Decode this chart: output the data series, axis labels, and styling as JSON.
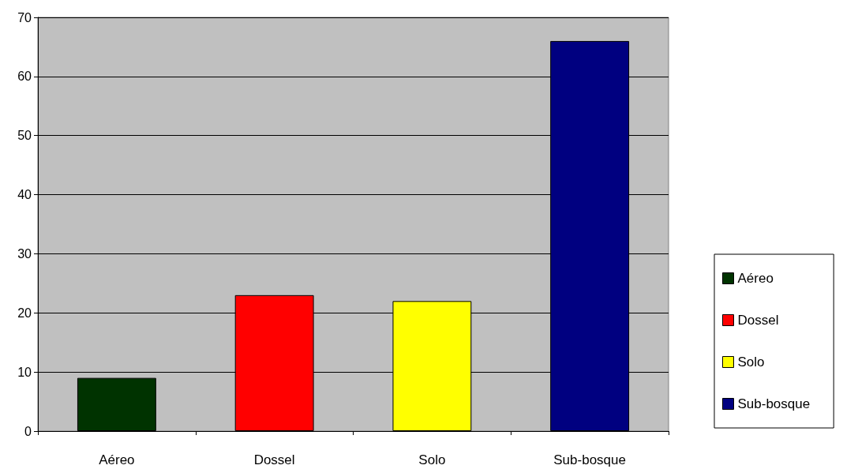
{
  "chart_data": {
    "type": "bar",
    "categories": [
      "Aéreo",
      "Dossel",
      "Solo",
      "Sub-bosque"
    ],
    "series": [
      {
        "name": "Aéreo",
        "color": "#003300",
        "values": [
          9,
          null,
          null,
          null
        ]
      },
      {
        "name": "Dossel",
        "color": "#ff0000",
        "values": [
          null,
          23,
          null,
          null
        ]
      },
      {
        "name": "Solo",
        "color": "#ffff00",
        "values": [
          null,
          null,
          22,
          null
        ]
      },
      {
        "name": "Sub-bosque",
        "color": "#000080",
        "values": [
          null,
          null,
          null,
          66
        ]
      }
    ],
    "ylim": [
      0,
      70
    ],
    "yticks": [
      0,
      10,
      20,
      30,
      40,
      50,
      60,
      70
    ],
    "grid": "y",
    "legend": "right"
  }
}
